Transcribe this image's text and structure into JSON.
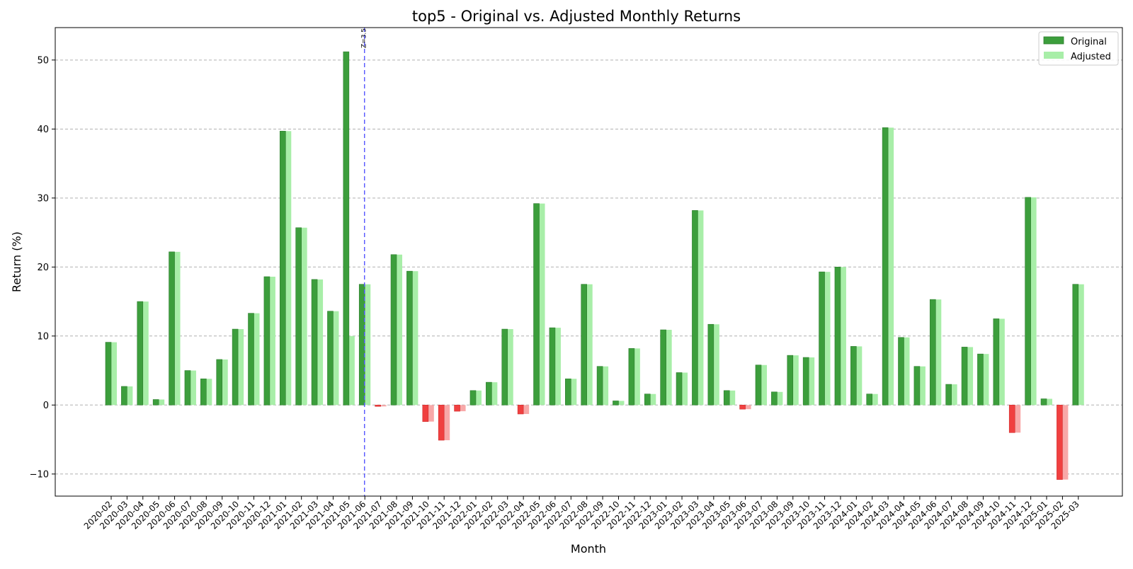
{
  "chart_data": {
    "type": "bar",
    "title": "top5 - Original vs. Adjusted Monthly Returns",
    "xlabel": "Month",
    "ylabel": "Return (%)",
    "ylim": [
      -13.2,
      54.7
    ],
    "yticks": [
      -10,
      0,
      10,
      20,
      30,
      40,
      50
    ],
    "ytick_labels": [
      "−10",
      "0",
      "10",
      "20",
      "30",
      "40",
      "50"
    ],
    "grid": "horizontal dashed",
    "legend_position": "top-right",
    "colors": {
      "original_positive": "#3c9e3c",
      "adjusted_positive": "#a8eea8",
      "original_negative": "#f04040",
      "adjusted_negative": "#f8a8a8",
      "marker_line": "#5555ff"
    },
    "categories": [
      "2020-02",
      "2020-03",
      "2020-04",
      "2020-05",
      "2020-06",
      "2020-07",
      "2020-08",
      "2020-09",
      "2020-10",
      "2020-11",
      "2020-12",
      "2021-01",
      "2021-02",
      "2021-03",
      "2021-04",
      "2021-05",
      "2021-06",
      "2021-07",
      "2021-08",
      "2021-09",
      "2021-10",
      "2021-11",
      "2021-12",
      "2022-01",
      "2022-02",
      "2022-03",
      "2022-04",
      "2022-05",
      "2022-06",
      "2022-07",
      "2022-08",
      "2022-09",
      "2022-10",
      "2022-11",
      "2022-12",
      "2023-01",
      "2023-02",
      "2023-03",
      "2023-04",
      "2023-05",
      "2023-06",
      "2023-07",
      "2023-08",
      "2023-09",
      "2023-10",
      "2023-11",
      "2023-12",
      "2024-01",
      "2024-02",
      "2024-03",
      "2024-04",
      "2024-05",
      "2024-06",
      "2024-07",
      "2024-08",
      "2024-09",
      "2024-10",
      "2024-11",
      "2024-12",
      "2025-01",
      "2025-02",
      "2025-03"
    ],
    "series": [
      {
        "name": "Original",
        "values": [
          9.1,
          2.7,
          15.0,
          0.8,
          22.2,
          5.0,
          3.8,
          6.6,
          11.0,
          13.3,
          18.6,
          39.7,
          25.7,
          18.2,
          13.6,
          51.2,
          17.5,
          -0.2,
          21.8,
          19.4,
          -2.4,
          -5.1,
          -0.9,
          2.1,
          3.3,
          11.0,
          -1.3,
          29.2,
          11.2,
          3.8,
          17.5,
          5.6,
          0.6,
          8.2,
          1.6,
          10.9,
          4.7,
          28.2,
          11.7,
          2.1,
          -0.6,
          5.8,
          1.9,
          7.2,
          6.9,
          19.3,
          20.0,
          8.5,
          1.6,
          40.2,
          9.8,
          5.6,
          15.3,
          3.0,
          8.4,
          7.4,
          12.5,
          -4.0,
          30.1,
          0.9,
          -10.8,
          17.5
        ]
      },
      {
        "name": "Adjusted",
        "values": [
          9.1,
          2.7,
          15.0,
          0.8,
          22.2,
          5.0,
          3.8,
          6.6,
          11.0,
          13.3,
          18.6,
          39.7,
          25.7,
          18.2,
          13.6,
          10.0,
          17.5,
          -0.2,
          21.8,
          19.4,
          -2.4,
          -5.1,
          -0.9,
          2.1,
          3.3,
          11.0,
          -1.3,
          29.2,
          11.2,
          3.8,
          17.5,
          5.6,
          0.6,
          8.2,
          1.6,
          10.9,
          4.7,
          28.2,
          11.7,
          2.1,
          -0.6,
          5.8,
          1.9,
          7.2,
          6.9,
          19.3,
          20.0,
          8.5,
          1.6,
          40.2,
          9.8,
          5.6,
          15.3,
          3.0,
          8.4,
          7.4,
          12.5,
          -4.0,
          30.1,
          0.9,
          -10.8,
          17.5
        ]
      }
    ],
    "annotations": [
      {
        "category": "2021-06",
        "text": "Z=3.5"
      }
    ]
  }
}
